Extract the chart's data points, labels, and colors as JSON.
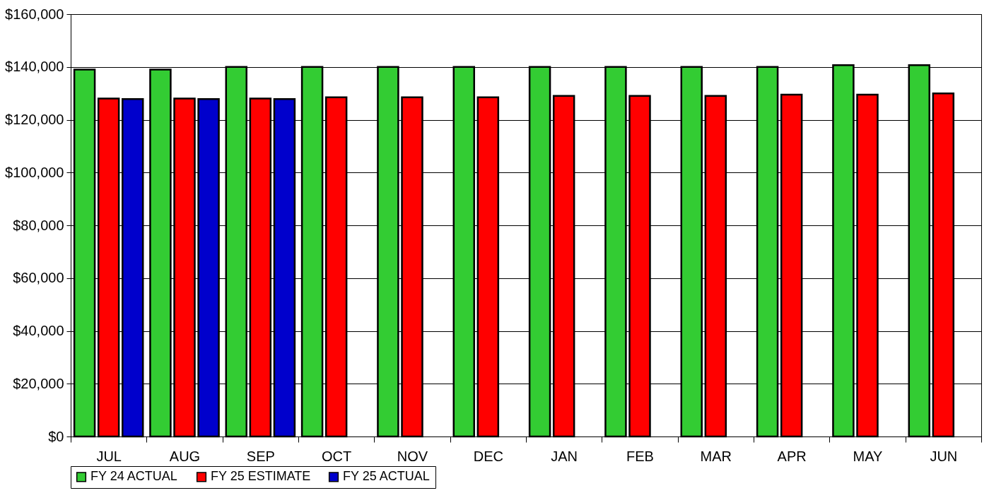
{
  "chart_data": {
    "type": "bar",
    "categories": [
      "JUL",
      "AUG",
      "SEP",
      "OCT",
      "NOV",
      "DEC",
      "JAN",
      "FEB",
      "MAR",
      "APR",
      "MAY",
      "JUN"
    ],
    "series": [
      {
        "name": "FY 24 ACTUAL",
        "color": "#33cc33",
        "values": [
          139000,
          139000,
          140000,
          140000,
          140000,
          140000,
          140000,
          140000,
          140000,
          140000,
          140700,
          140700
        ]
      },
      {
        "name": "FY 25 ESTIMATE",
        "color": "#ff0000",
        "values": [
          128000,
          128000,
          128000,
          128500,
          128500,
          128500,
          129000,
          129000,
          129000,
          129500,
          129500,
          130000
        ]
      },
      {
        "name": "FY 25 ACTUAL",
        "color": "#0000cc",
        "values": [
          127800,
          127800,
          127800,
          null,
          null,
          null,
          null,
          null,
          null,
          null,
          null,
          null
        ]
      }
    ],
    "ylim": [
      0,
      160000
    ],
    "yticks": [
      {
        "value": 0,
        "label": "$0"
      },
      {
        "value": 20000,
        "label": "$20,000"
      },
      {
        "value": 40000,
        "label": "$40,000"
      },
      {
        "value": 60000,
        "label": "$60,000"
      },
      {
        "value": 80000,
        "label": "$80,000"
      },
      {
        "value": 100000,
        "label": "$100,000"
      },
      {
        "value": 120000,
        "label": "$120,000"
      },
      {
        "value": 140000,
        "label": "$140,000"
      },
      {
        "value": 160000,
        "label": "$160,000"
      }
    ],
    "grid": "y",
    "legend": "bottom"
  }
}
